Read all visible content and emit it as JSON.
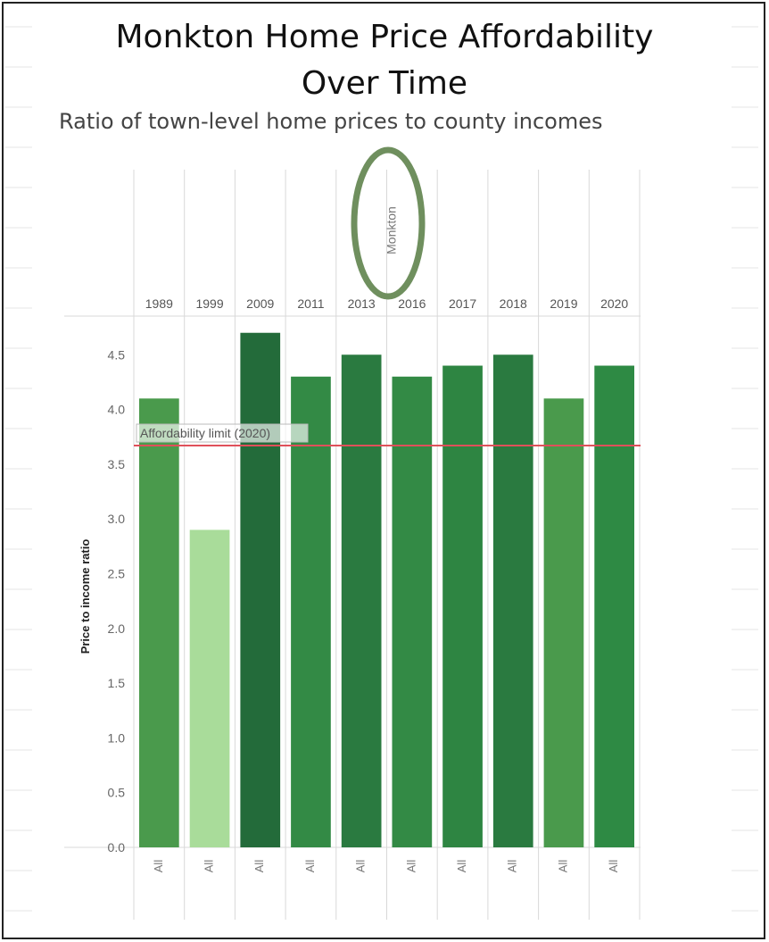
{
  "title_line1": "Monkton Home Price Affordability",
  "title_line2": "Over Time",
  "subtitle": "Ratio of town-level home prices to county incomes",
  "colors": {
    "reference_line": "#e0505a",
    "circle_stroke": "#6f8f5e",
    "grid": "#d8d8d8"
  },
  "chart_data": {
    "type": "bar",
    "pane_header": "Monkton",
    "categories": [
      "1989",
      "1999",
      "2009",
      "2011",
      "2013",
      "2016",
      "2017",
      "2018",
      "2019",
      "2020"
    ],
    "sub_labels": [
      "All",
      "All",
      "All",
      "All",
      "All",
      "All",
      "All",
      "All",
      "All",
      "All"
    ],
    "values": [
      4.1,
      2.9,
      4.7,
      4.3,
      4.5,
      4.3,
      4.4,
      4.5,
      4.1,
      4.4
    ],
    "bar_colors": [
      "#4a9a4c",
      "#a9dc9a",
      "#236b3a",
      "#338a45",
      "#2a7a40",
      "#338a45",
      "#2e8542",
      "#2a7a40",
      "#4a9a4c",
      "#2e8a44"
    ],
    "ylabel": "Price to income ratio",
    "ylim": [
      0,
      4.6
    ],
    "yticks": [
      0.0,
      0.5,
      1.0,
      1.5,
      2.0,
      2.5,
      3.0,
      3.5,
      4.0,
      4.5
    ],
    "ytick_labels": [
      "0.0",
      "0.5",
      "1.0",
      "1.5",
      "2.0",
      "2.5",
      "3.0",
      "3.5",
      "4.0",
      "4.5"
    ],
    "reference_line": {
      "value": 3.67,
      "label": "Affordability limit (2020)"
    },
    "grid": false
  }
}
